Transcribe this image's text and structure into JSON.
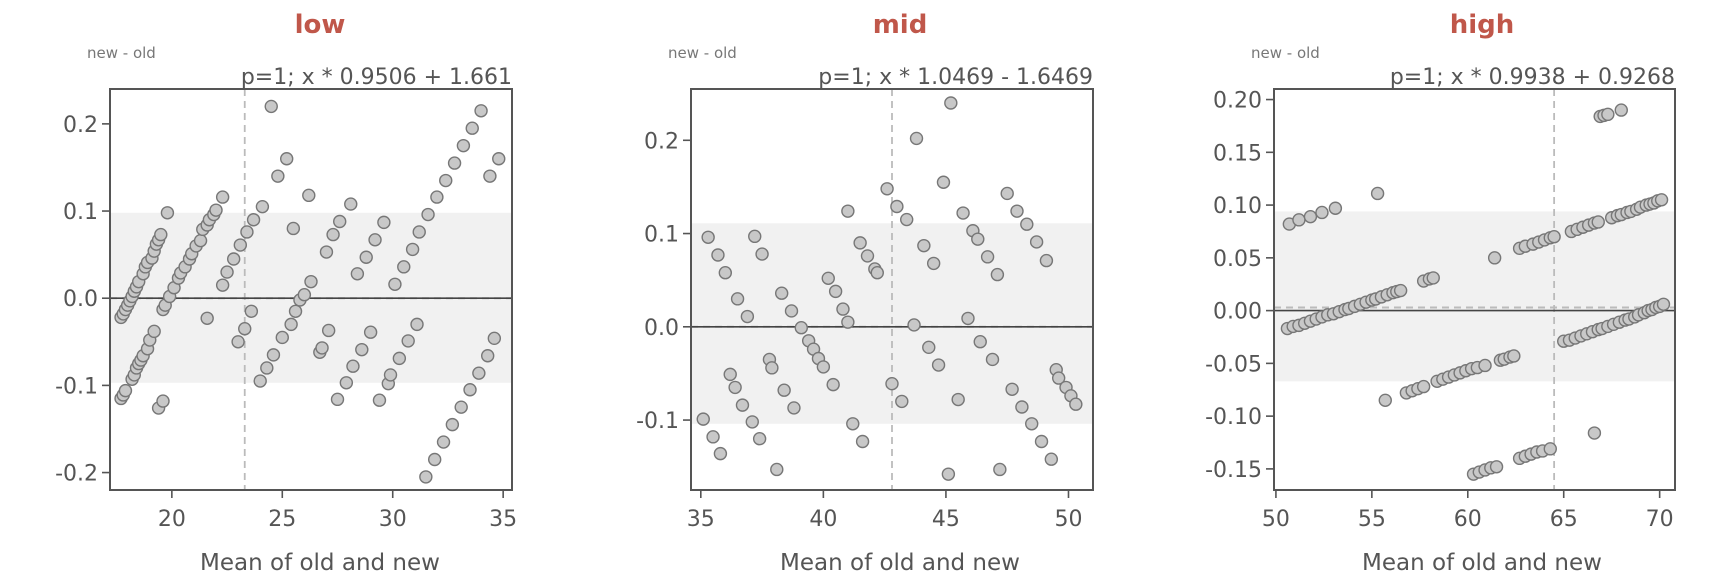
{
  "colors": {
    "title": "#c0574a",
    "text": "#555555",
    "band": "#f1f1f1",
    "point_fill": "#c8c8c8",
    "point_stroke": "#777777",
    "axis": "#555555",
    "zero_line": "#444444",
    "dashed": "#bbbbbb"
  },
  "chart_data": [
    {
      "type": "scatter",
      "title": "low",
      "ylabel": "new - old",
      "xlabel": "Mean of old and new",
      "annotation": "p=1; x * 0.9506 + 1.661",
      "xlim": [
        17.2,
        35.4
      ],
      "ylim": [
        -0.22,
        0.24
      ],
      "xticks": [
        20,
        25,
        30,
        35
      ],
      "yticks": [
        -0.2,
        -0.1,
        0.0,
        0.1,
        0.2
      ],
      "ytick_labels": [
        "-0.2",
        "-0.1",
        "0.0",
        "0.1",
        "0.2"
      ],
      "loa_band": [
        -0.097,
        0.098
      ],
      "mean_diff": 0.0,
      "vline": 23.3,
      "points": [
        [
          17.7,
          -0.022
        ],
        [
          17.8,
          -0.018
        ],
        [
          17.9,
          -0.013
        ],
        [
          18.0,
          -0.008
        ],
        [
          18.1,
          -0.003
        ],
        [
          18.2,
          0.002
        ],
        [
          18.3,
          0.008
        ],
        [
          18.4,
          0.013
        ],
        [
          18.5,
          0.019
        ],
        [
          18.7,
          0.028
        ],
        [
          18.8,
          0.036
        ],
        [
          18.9,
          0.041
        ],
        [
          19.1,
          0.046
        ],
        [
          19.2,
          0.054
        ],
        [
          19.3,
          0.062
        ],
        [
          19.4,
          0.067
        ],
        [
          19.5,
          0.073
        ],
        [
          19.8,
          0.098
        ],
        [
          17.7,
          -0.115
        ],
        [
          17.8,
          -0.111
        ],
        [
          17.9,
          -0.106
        ],
        [
          18.2,
          -0.093
        ],
        [
          18.3,
          -0.088
        ],
        [
          18.4,
          -0.08
        ],
        [
          18.5,
          -0.075
        ],
        [
          18.6,
          -0.071
        ],
        [
          18.7,
          -0.066
        ],
        [
          18.9,
          -0.058
        ],
        [
          19.0,
          -0.048
        ],
        [
          19.2,
          -0.038
        ],
        [
          19.4,
          -0.126
        ],
        [
          19.6,
          -0.118
        ],
        [
          19.6,
          -0.013
        ],
        [
          19.7,
          -0.008
        ],
        [
          19.9,
          0.002
        ],
        [
          20.1,
          0.012
        ],
        [
          20.3,
          0.023
        ],
        [
          20.4,
          0.029
        ],
        [
          20.6,
          0.036
        ],
        [
          20.8,
          0.045
        ],
        [
          20.9,
          0.051
        ],
        [
          21.1,
          0.06
        ],
        [
          21.3,
          0.066
        ],
        [
          21.4,
          0.079
        ],
        [
          21.6,
          0.084
        ],
        [
          21.7,
          0.09
        ],
        [
          21.9,
          0.096
        ],
        [
          22.0,
          0.101
        ],
        [
          22.3,
          0.116
        ],
        [
          21.6,
          -0.023
        ],
        [
          22.3,
          0.015
        ],
        [
          22.5,
          0.03
        ],
        [
          22.8,
          0.045
        ],
        [
          23.1,
          0.061
        ],
        [
          23.4,
          0.076
        ],
        [
          23.7,
          0.09
        ],
        [
          24.1,
          0.105
        ],
        [
          24.5,
          0.22
        ],
        [
          24.8,
          0.14
        ],
        [
          25.2,
          0.16
        ],
        [
          25.5,
          0.08
        ],
        [
          26.2,
          0.118
        ],
        [
          23.0,
          -0.05
        ],
        [
          23.3,
          -0.035
        ],
        [
          23.6,
          -0.015
        ],
        [
          24.0,
          -0.095
        ],
        [
          24.3,
          -0.08
        ],
        [
          24.6,
          -0.065
        ],
        [
          25.0,
          -0.045
        ],
        [
          25.4,
          -0.03
        ],
        [
          25.6,
          -0.015
        ],
        [
          25.8,
          -0.002
        ],
        [
          26.0,
          0.004
        ],
        [
          26.3,
          0.019
        ],
        [
          26.7,
          -0.062
        ],
        [
          26.8,
          -0.057
        ],
        [
          27.0,
          0.053
        ],
        [
          27.1,
          -0.037
        ],
        [
          27.3,
          0.073
        ],
        [
          27.5,
          -0.116
        ],
        [
          27.6,
          0.088
        ],
        [
          27.9,
          -0.097
        ],
        [
          28.1,
          0.108
        ],
        [
          28.2,
          -0.078
        ],
        [
          28.4,
          0.028
        ],
        [
          28.6,
          -0.059
        ],
        [
          28.8,
          0.047
        ],
        [
          29.0,
          -0.039
        ],
        [
          29.2,
          0.067
        ],
        [
          29.4,
          -0.117
        ],
        [
          29.6,
          0.087
        ],
        [
          29.8,
          -0.098
        ],
        [
          29.9,
          -0.088
        ],
        [
          30.1,
          0.016
        ],
        [
          30.3,
          -0.069
        ],
        [
          30.5,
          0.036
        ],
        [
          30.7,
          -0.049
        ],
        [
          30.9,
          0.056
        ],
        [
          31.1,
          -0.03
        ],
        [
          31.2,
          0.076
        ],
        [
          31.5,
          -0.205
        ],
        [
          31.6,
          0.096
        ],
        [
          31.9,
          -0.185
        ],
        [
          32.0,
          0.116
        ],
        [
          32.3,
          -0.165
        ],
        [
          32.4,
          0.135
        ],
        [
          32.7,
          -0.145
        ],
        [
          32.8,
          0.155
        ],
        [
          33.1,
          -0.125
        ],
        [
          33.2,
          0.175
        ],
        [
          33.5,
          -0.105
        ],
        [
          33.6,
          0.195
        ],
        [
          33.9,
          -0.086
        ],
        [
          34.0,
          0.215
        ],
        [
          34.3,
          -0.066
        ],
        [
          34.4,
          0.14
        ],
        [
          34.6,
          -0.046
        ],
        [
          34.8,
          0.16
        ]
      ]
    },
    {
      "type": "scatter",
      "title": "mid",
      "ylabel": "new - old",
      "xlabel": "Mean of old and new",
      "annotation": "p=1; x * 1.0469 - 1.6469",
      "xlim": [
        34.6,
        51.0
      ],
      "ylim": [
        -0.175,
        0.255
      ],
      "xticks": [
        35,
        40,
        45,
        50
      ],
      "yticks": [
        -0.1,
        0.0,
        0.1,
        0.2
      ],
      "ytick_labels": [
        "-0.1",
        "0.0",
        "0.1",
        "0.2"
      ],
      "loa_band": [
        -0.104,
        0.111
      ],
      "mean_diff": 0.0,
      "vline": 42.8,
      "points": [
        [
          35.1,
          -0.099
        ],
        [
          35.3,
          0.096
        ],
        [
          35.5,
          -0.118
        ],
        [
          35.7,
          0.077
        ],
        [
          35.8,
          -0.136
        ],
        [
          36.0,
          0.058
        ],
        [
          36.2,
          -0.051
        ],
        [
          36.4,
          -0.065
        ],
        [
          36.5,
          0.03
        ],
        [
          36.7,
          -0.084
        ],
        [
          36.9,
          0.011
        ],
        [
          37.1,
          -0.102
        ],
        [
          37.2,
          0.097
        ],
        [
          37.4,
          -0.12
        ],
        [
          37.5,
          0.078
        ],
        [
          37.8,
          -0.035
        ],
        [
          37.9,
          -0.044
        ],
        [
          38.1,
          -0.153
        ],
        [
          38.3,
          0.036
        ],
        [
          38.4,
          -0.068
        ],
        [
          38.7,
          0.017
        ],
        [
          38.8,
          -0.087
        ],
        [
          39.1,
          -0.001
        ],
        [
          39.4,
          -0.015
        ],
        [
          39.6,
          -0.024
        ],
        [
          39.8,
          -0.034
        ],
        [
          40.0,
          -0.043
        ],
        [
          40.2,
          0.052
        ],
        [
          40.4,
          -0.062
        ],
        [
          40.5,
          0.038
        ],
        [
          40.8,
          0.019
        ],
        [
          41.0,
          0.005
        ],
        [
          41.2,
          -0.104
        ],
        [
          41.6,
          -0.123
        ],
        [
          41.0,
          0.124
        ],
        [
          41.5,
          0.09
        ],
        [
          41.8,
          0.076
        ],
        [
          42.1,
          0.062
        ],
        [
          42.2,
          0.058
        ],
        [
          42.6,
          0.148
        ],
        [
          42.8,
          -0.061
        ],
        [
          43.0,
          0.129
        ],
        [
          43.2,
          -0.08
        ],
        [
          43.4,
          0.115
        ],
        [
          43.7,
          0.002
        ],
        [
          43.8,
          0.202
        ],
        [
          44.1,
          0.087
        ],
        [
          44.3,
          -0.022
        ],
        [
          44.5,
          0.068
        ],
        [
          44.7,
          -0.041
        ],
        [
          44.9,
          0.155
        ],
        [
          45.2,
          0.24
        ],
        [
          45.5,
          -0.078
        ],
        [
          45.7,
          0.122
        ],
        [
          45.9,
          0.009
        ],
        [
          46.1,
          0.103
        ],
        [
          46.3,
          0.094
        ],
        [
          46.4,
          -0.016
        ],
        [
          46.7,
          0.075
        ],
        [
          46.9,
          -0.035
        ],
        [
          47.1,
          0.056
        ],
        [
          47.2,
          -0.153
        ],
        [
          47.5,
          0.143
        ],
        [
          47.7,
          -0.067
        ],
        [
          47.9,
          0.124
        ],
        [
          48.1,
          -0.086
        ],
        [
          48.3,
          0.11
        ],
        [
          48.5,
          -0.104
        ],
        [
          48.7,
          0.091
        ],
        [
          48.9,
          -0.123
        ],
        [
          49.1,
          0.071
        ],
        [
          49.3,
          -0.142
        ],
        [
          49.5,
          -0.046
        ],
        [
          49.6,
          -0.055
        ],
        [
          49.9,
          -0.065
        ],
        [
          50.1,
          -0.074
        ],
        [
          50.3,
          -0.083
        ],
        [
          45.1,
          -0.158
        ]
      ]
    },
    {
      "type": "scatter",
      "title": "high",
      "ylabel": "new - old",
      "xlabel": "Mean of old and new",
      "annotation": "p=1; x * 0.9938 + 0.9268",
      "xlim": [
        49.9,
        70.8
      ],
      "ylim": [
        -0.17,
        0.21
      ],
      "xticks": [
        50,
        55,
        60,
        65,
        70
      ],
      "yticks": [
        -0.15,
        -0.1,
        -0.05,
        0.0,
        0.05,
        0.1,
        0.15,
        0.2
      ],
      "ytick_labels": [
        "-0.15",
        "-0.10",
        "-0.05",
        "0.00",
        "0.05",
        "0.10",
        "0.15",
        "0.20"
      ],
      "loa_band": [
        -0.067,
        0.094
      ],
      "mean_diff": 0.003,
      "vline": 64.5,
      "points": [
        [
          50.7,
          0.082
        ],
        [
          51.2,
          0.086
        ],
        [
          51.8,
          0.089
        ],
        [
          52.4,
          0.093
        ],
        [
          53.1,
          0.097
        ],
        [
          55.3,
          0.111
        ],
        [
          50.6,
          -0.017
        ],
        [
          50.9,
          -0.015
        ],
        [
          51.2,
          -0.014
        ],
        [
          51.5,
          -0.012
        ],
        [
          51.8,
          -0.01
        ],
        [
          52.1,
          -0.008
        ],
        [
          52.4,
          -0.006
        ],
        [
          52.7,
          -0.004
        ],
        [
          53.0,
          -0.003
        ],
        [
          53.3,
          -0.001
        ],
        [
          53.6,
          0.001
        ],
        [
          53.8,
          0.002
        ],
        [
          54.1,
          0.004
        ],
        [
          54.4,
          0.006
        ],
        [
          54.7,
          0.008
        ],
        [
          55.0,
          0.01
        ],
        [
          55.2,
          0.011
        ],
        [
          55.5,
          0.013
        ],
        [
          55.8,
          0.015
        ],
        [
          56.1,
          0.017
        ],
        [
          56.3,
          0.018
        ],
        [
          56.5,
          0.019
        ],
        [
          55.7,
          -0.085
        ],
        [
          56.8,
          -0.078
        ],
        [
          57.1,
          -0.076
        ],
        [
          57.4,
          -0.074
        ],
        [
          57.7,
          -0.072
        ],
        [
          57.7,
          0.028
        ],
        [
          58.0,
          0.03
        ],
        [
          58.2,
          0.031
        ],
        [
          58.4,
          -0.067
        ],
        [
          58.7,
          -0.065
        ],
        [
          59.0,
          -0.063
        ],
        [
          59.3,
          -0.061
        ],
        [
          59.6,
          -0.059
        ],
        [
          59.9,
          -0.057
        ],
        [
          60.2,
          -0.055
        ],
        [
          60.5,
          -0.054
        ],
        [
          60.9,
          -0.052
        ],
        [
          61.4,
          0.05
        ],
        [
          61.7,
          -0.047
        ],
        [
          61.9,
          -0.046
        ],
        [
          62.2,
          -0.044
        ],
        [
          62.4,
          -0.043
        ],
        [
          60.3,
          -0.155
        ],
        [
          60.6,
          -0.153
        ],
        [
          60.9,
          -0.151
        ],
        [
          61.2,
          -0.149
        ],
        [
          61.5,
          -0.148
        ],
        [
          62.7,
          -0.14
        ],
        [
          63.0,
          -0.138
        ],
        [
          63.3,
          -0.136
        ],
        [
          63.6,
          -0.134
        ],
        [
          63.9,
          -0.133
        ],
        [
          64.3,
          -0.131
        ],
        [
          62.7,
          0.059
        ],
        [
          63.0,
          0.061
        ],
        [
          63.4,
          0.063
        ],
        [
          63.7,
          0.065
        ],
        [
          64.0,
          0.067
        ],
        [
          64.3,
          0.069
        ],
        [
          64.5,
          0.07
        ],
        [
          65.0,
          -0.029
        ],
        [
          65.3,
          -0.028
        ],
        [
          65.6,
          -0.026
        ],
        [
          65.9,
          -0.024
        ],
        [
          66.2,
          -0.022
        ],
        [
          66.5,
          -0.02
        ],
        [
          66.8,
          -0.018
        ],
        [
          67.0,
          -0.017
        ],
        [
          67.3,
          -0.015
        ],
        [
          67.6,
          -0.013
        ],
        [
          67.9,
          -0.011
        ],
        [
          68.2,
          -0.009
        ],
        [
          68.4,
          -0.008
        ],
        [
          68.7,
          -0.006
        ],
        [
          68.9,
          -0.004
        ],
        [
          69.2,
          -0.002
        ],
        [
          69.4,
          0.0
        ],
        [
          69.6,
          0.001
        ],
        [
          69.8,
          0.003
        ],
        [
          70.0,
          0.004
        ],
        [
          70.2,
          0.006
        ],
        [
          65.4,
          0.075
        ],
        [
          65.7,
          0.077
        ],
        [
          66.0,
          0.079
        ],
        [
          66.3,
          0.081
        ],
        [
          66.6,
          0.083
        ],
        [
          66.8,
          0.084
        ],
        [
          67.5,
          0.088
        ],
        [
          67.8,
          0.09
        ],
        [
          68.0,
          0.091
        ],
        [
          68.3,
          0.093
        ],
        [
          68.5,
          0.094
        ],
        [
          68.8,
          0.096
        ],
        [
          69.0,
          0.098
        ],
        [
          69.3,
          0.1
        ],
        [
          69.5,
          0.101
        ],
        [
          69.7,
          0.102
        ],
        [
          69.9,
          0.104
        ],
        [
          70.1,
          0.105
        ],
        [
          66.9,
          0.184
        ],
        [
          67.1,
          0.185
        ],
        [
          67.3,
          0.186
        ],
        [
          68.0,
          0.19
        ],
        [
          66.6,
          -0.116
        ]
      ]
    }
  ]
}
